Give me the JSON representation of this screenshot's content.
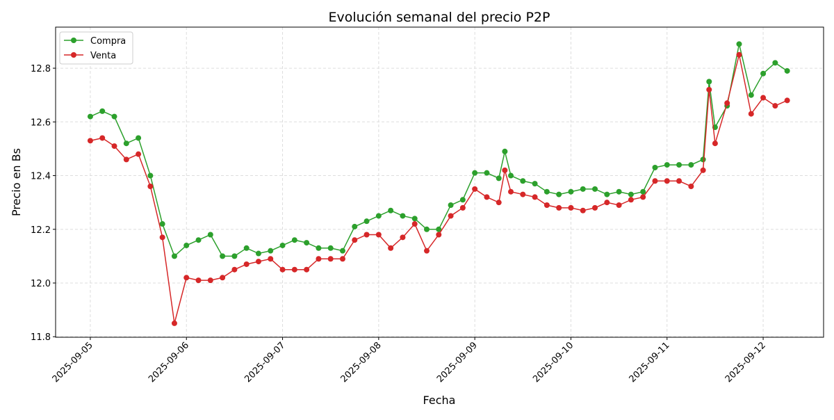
{
  "chart_data": {
    "type": "line",
    "title": "Evolución semanal del precio P2P",
    "xlabel": "Fecha",
    "ylabel": "Precio en Bs",
    "xlim": [
      "2025-09-04 15:20",
      "2025-09-12 15:05"
    ],
    "ylim": [
      11.798,
      12.953
    ],
    "grid": true,
    "legend": "top-left",
    "x_ticks": [
      "2025-09-05",
      "2025-09-06",
      "2025-09-07",
      "2025-09-08",
      "2025-09-09",
      "2025-09-10",
      "2025-09-11",
      "2025-09-12"
    ],
    "y_ticks": [
      "11.8",
      "12.0",
      "12.2",
      "12.4",
      "12.6",
      "12.8"
    ],
    "x": [
      "2025-09-05 00:00",
      "2025-09-05 03:00",
      "2025-09-05 06:00",
      "2025-09-05 09:00",
      "2025-09-05 12:00",
      "2025-09-05 15:00",
      "2025-09-05 18:00",
      "2025-09-05 21:00",
      "2025-09-06 00:00",
      "2025-09-06 03:00",
      "2025-09-06 06:00",
      "2025-09-06 09:00",
      "2025-09-06 12:00",
      "2025-09-06 15:00",
      "2025-09-06 18:00",
      "2025-09-06 21:00",
      "2025-09-07 00:00",
      "2025-09-07 03:00",
      "2025-09-07 06:00",
      "2025-09-07 09:00",
      "2025-09-07 12:00",
      "2025-09-07 15:00",
      "2025-09-07 18:00",
      "2025-09-07 21:00",
      "2025-09-08 00:00",
      "2025-09-08 03:00",
      "2025-09-08 06:00",
      "2025-09-08 09:00",
      "2025-09-08 12:00",
      "2025-09-08 15:00",
      "2025-09-08 18:00",
      "2025-09-08 21:00",
      "2025-09-09 00:00",
      "2025-09-09 03:00",
      "2025-09-09 06:00",
      "2025-09-09 07:30",
      "2025-09-09 09:00",
      "2025-09-09 12:00",
      "2025-09-09 15:00",
      "2025-09-09 18:00",
      "2025-09-09 21:00",
      "2025-09-10 00:00",
      "2025-09-10 03:00",
      "2025-09-10 06:00",
      "2025-09-10 09:00",
      "2025-09-10 12:00",
      "2025-09-10 15:00",
      "2025-09-10 18:00",
      "2025-09-10 21:00",
      "2025-09-11 00:00",
      "2025-09-11 03:00",
      "2025-09-11 06:00",
      "2025-09-11 09:00",
      "2025-09-11 10:30",
      "2025-09-11 12:00",
      "2025-09-11 15:00",
      "2025-09-11 18:00",
      "2025-09-11 21:00",
      "2025-09-12 00:00",
      "2025-09-12 03:00",
      "2025-09-12 06:00"
    ],
    "series": [
      {
        "name": "Compra",
        "color": "#2ca02c",
        "marker": "circle",
        "values": [
          12.62,
          12.64,
          12.62,
          12.52,
          12.54,
          12.4,
          12.22,
          12.1,
          12.14,
          12.16,
          12.18,
          12.1,
          12.1,
          12.13,
          12.11,
          12.12,
          12.14,
          12.16,
          12.15,
          12.13,
          12.13,
          12.12,
          12.21,
          12.23,
          12.25,
          12.27,
          12.25,
          12.24,
          12.2,
          12.2,
          12.29,
          12.31,
          12.41,
          12.41,
          12.39,
          12.49,
          12.4,
          12.38,
          12.37,
          12.34,
          12.33,
          12.34,
          12.35,
          12.35,
          12.33,
          12.34,
          12.33,
          12.34,
          12.43,
          12.44,
          12.44,
          12.44,
          12.46,
          12.75,
          12.58,
          12.66,
          12.89,
          12.7,
          12.78,
          12.82,
          12.79
        ]
      },
      {
        "name": "Venta",
        "color": "#d62728",
        "marker": "circle",
        "values": [
          12.53,
          12.54,
          12.51,
          12.46,
          12.48,
          12.36,
          12.17,
          11.85,
          12.02,
          12.01,
          12.01,
          12.02,
          12.05,
          12.07,
          12.08,
          12.09,
          12.05,
          12.05,
          12.05,
          12.09,
          12.09,
          12.09,
          12.16,
          12.18,
          12.18,
          12.13,
          12.17,
          12.22,
          12.12,
          12.18,
          12.25,
          12.28,
          12.35,
          12.32,
          12.3,
          12.42,
          12.34,
          12.33,
          12.32,
          12.29,
          12.28,
          12.28,
          12.27,
          12.28,
          12.3,
          12.29,
          12.31,
          12.32,
          12.38,
          12.38,
          12.38,
          12.36,
          12.42,
          12.72,
          12.52,
          12.67,
          12.85,
          12.63,
          12.69,
          12.66,
          12.68
        ]
      }
    ]
  }
}
